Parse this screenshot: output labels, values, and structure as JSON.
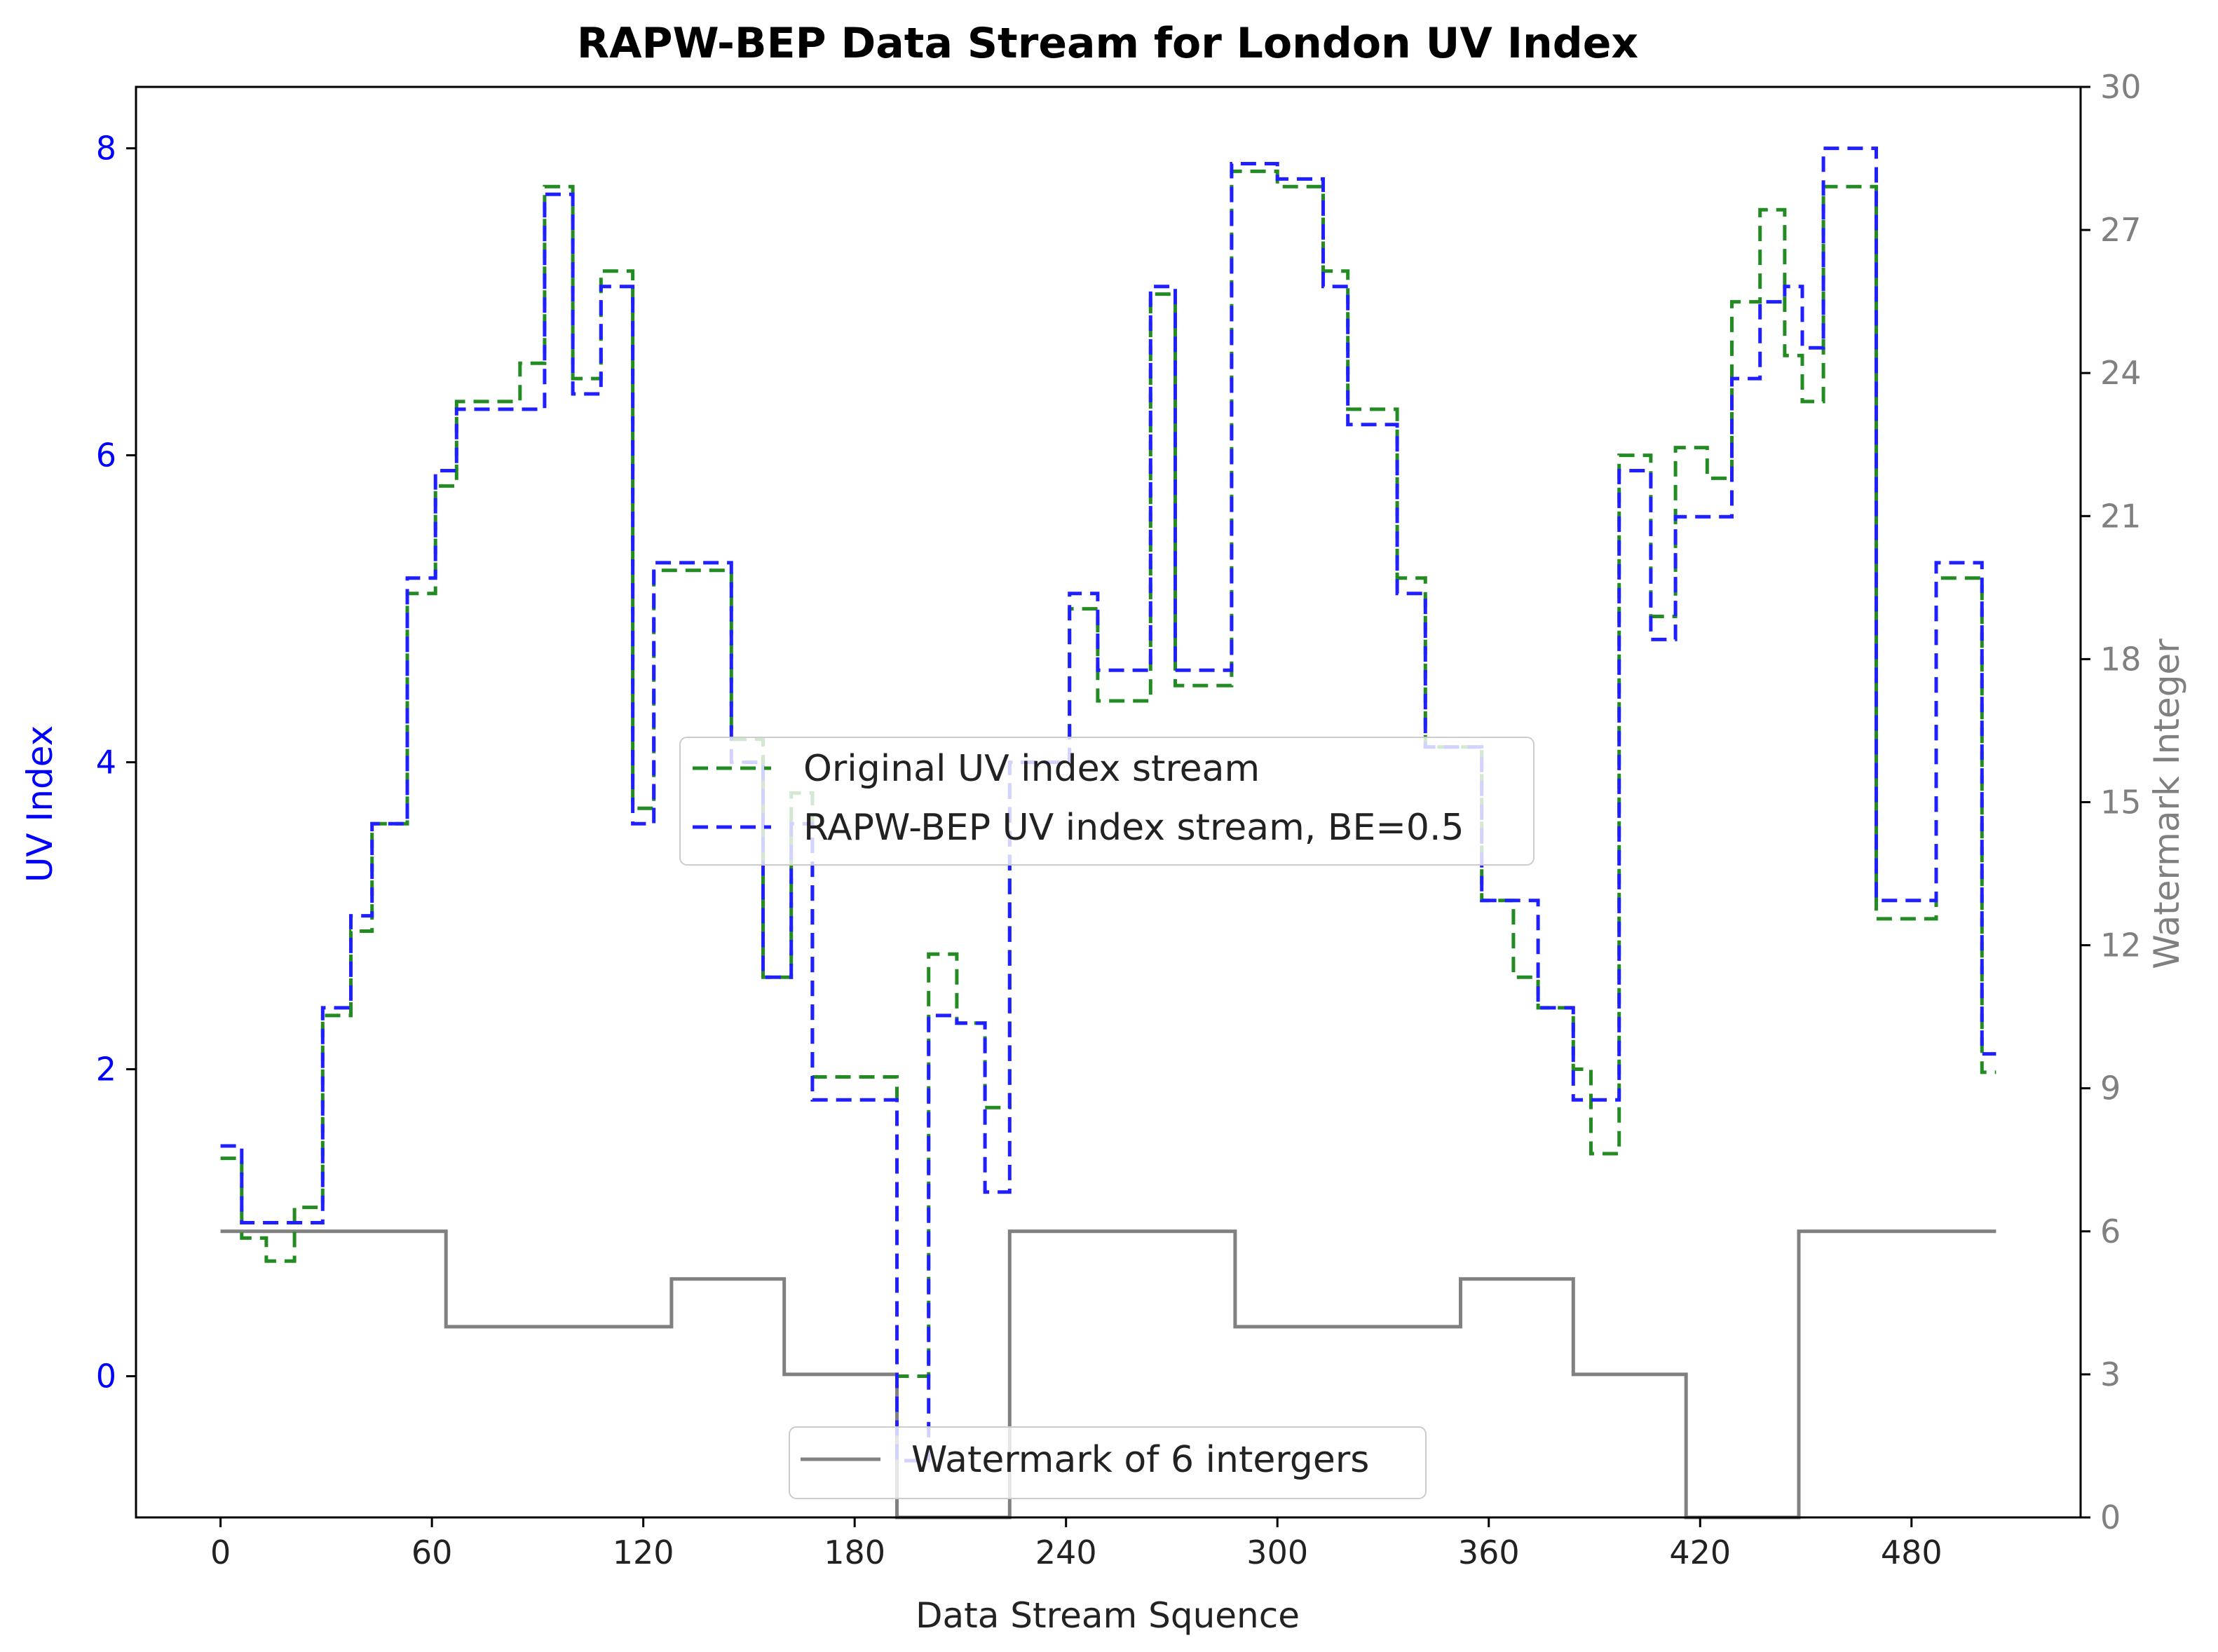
{
  "chart_data": {
    "type": "line",
    "title": "RAPW-BEP Data Stream for London UV Index",
    "xlabel": "Data Stream Squence",
    "ylabel_left": "UV Index",
    "ylabel_right": "Watermark Integer",
    "xlim": [
      -24,
      528
    ],
    "ylim_left": [
      -0.92,
      8.4
    ],
    "ylim_right": [
      0,
      30
    ],
    "x_ticks": [
      0,
      60,
      120,
      180,
      240,
      300,
      360,
      420,
      480
    ],
    "y_ticks_left": [
      0,
      2,
      4,
      6,
      8
    ],
    "y_ticks_right": [
      0,
      3,
      6,
      9,
      12,
      15,
      18,
      21,
      24,
      27,
      30
    ],
    "grid": false,
    "legend_uv": {
      "placement": "center",
      "entries": [
        "Original UV index stream",
        "RAPW-BEP UV index stream, BE=0.5"
      ]
    },
    "legend_wm": {
      "placement": "lower-center",
      "entries": [
        "Watermark of 6 intergers"
      ]
    },
    "colors": {
      "original": "#228b22",
      "rapw": "#1f1fff",
      "watermark": "#808080",
      "left_axis": "#0000ff",
      "right_axis": "#808080"
    },
    "series": [
      {
        "name": "Original UV index stream",
        "axis": "left",
        "style": "dashed-step",
        "steps": [
          [
            0,
            1.42
          ],
          [
            6,
            0.9
          ],
          [
            13,
            0.75
          ],
          [
            21,
            1.1
          ],
          [
            29,
            2.35
          ],
          [
            37,
            2.9
          ],
          [
            43,
            3.6
          ],
          [
            53,
            5.1
          ],
          [
            61,
            5.8
          ],
          [
            67,
            6.35
          ],
          [
            85,
            6.6
          ],
          [
            92,
            7.75
          ],
          [
            100,
            6.5
          ],
          [
            108,
            7.2
          ],
          [
            117,
            3.7
          ],
          [
            123,
            5.25
          ],
          [
            128,
            5.25
          ],
          [
            145,
            4.15
          ],
          [
            154,
            2.6
          ],
          [
            162,
            3.8
          ],
          [
            168,
            1.95
          ],
          [
            192,
            0.0
          ],
          [
            201,
            2.75
          ],
          [
            209,
            2.3
          ],
          [
            217,
            1.75
          ],
          [
            224,
            4.0
          ],
          [
            241,
            5.0
          ],
          [
            249,
            4.4
          ],
          [
            264,
            7.05
          ],
          [
            271,
            4.5
          ],
          [
            287,
            7.85
          ],
          [
            300,
            7.75
          ],
          [
            313,
            7.2
          ],
          [
            320,
            6.3
          ],
          [
            334,
            5.2
          ],
          [
            342,
            4.1
          ],
          [
            358,
            3.1
          ],
          [
            367,
            2.6
          ],
          [
            374,
            2.4
          ],
          [
            384,
            2.0
          ],
          [
            389,
            1.45
          ],
          [
            397,
            6.0
          ],
          [
            406,
            4.95
          ],
          [
            413,
            6.05
          ],
          [
            422,
            5.85
          ],
          [
            429,
            7.0
          ],
          [
            437,
            7.6
          ],
          [
            444,
            6.65
          ],
          [
            449,
            6.35
          ],
          [
            455,
            7.75
          ],
          [
            462,
            7.75
          ],
          [
            470,
            2.98
          ],
          [
            487,
            5.2
          ],
          [
            493,
            5.2
          ],
          [
            500,
            1.98
          ],
          [
            504,
            1.98
          ]
        ]
      },
      {
        "name": "RAPW-BEP UV index stream, BE=0.5",
        "axis": "left",
        "style": "dashed-step",
        "steps": [
          [
            0,
            1.5
          ],
          [
            6,
            1.0
          ],
          [
            13,
            1.0
          ],
          [
            21,
            1.0
          ],
          [
            29,
            2.4
          ],
          [
            37,
            3.0
          ],
          [
            43,
            3.6
          ],
          [
            53,
            5.2
          ],
          [
            61,
            5.9
          ],
          [
            67,
            6.3
          ],
          [
            85,
            6.3
          ],
          [
            92,
            7.7
          ],
          [
            100,
            6.4
          ],
          [
            108,
            7.1
          ],
          [
            117,
            3.6
          ],
          [
            123,
            5.3
          ],
          [
            128,
            5.3
          ],
          [
            145,
            4.0
          ],
          [
            154,
            2.6
          ],
          [
            162,
            3.6
          ],
          [
            168,
            1.8
          ],
          [
            192,
            -0.55
          ],
          [
            201,
            2.35
          ],
          [
            209,
            2.3
          ],
          [
            217,
            1.2
          ],
          [
            224,
            4.0
          ],
          [
            241,
            5.1
          ],
          [
            249,
            4.6
          ],
          [
            264,
            7.1
          ],
          [
            271,
            4.6
          ],
          [
            287,
            7.9
          ],
          [
            300,
            7.8
          ],
          [
            313,
            7.1
          ],
          [
            320,
            6.2
          ],
          [
            334,
            5.1
          ],
          [
            342,
            4.1
          ],
          [
            358,
            3.1
          ],
          [
            367,
            3.1
          ],
          [
            374,
            2.4
          ],
          [
            384,
            1.8
          ],
          [
            389,
            1.8
          ],
          [
            397,
            5.9
          ],
          [
            406,
            4.8
          ],
          [
            413,
            5.6
          ],
          [
            422,
            5.6
          ],
          [
            429,
            6.5
          ],
          [
            437,
            7.0
          ],
          [
            444,
            7.1
          ],
          [
            449,
            6.7
          ],
          [
            455,
            8.0
          ],
          [
            462,
            8.0
          ],
          [
            470,
            3.1
          ],
          [
            487,
            5.3
          ],
          [
            493,
            5.3
          ],
          [
            500,
            2.1
          ],
          [
            504,
            2.1
          ]
        ]
      },
      {
        "name": "Watermark of 6 intergers",
        "axis": "right",
        "style": "solid-step",
        "steps": [
          [
            0,
            6
          ],
          [
            64,
            4
          ],
          [
            128,
            5
          ],
          [
            160,
            3
          ],
          [
            192,
            0
          ],
          [
            224,
            6
          ],
          [
            288,
            4
          ],
          [
            352,
            5
          ],
          [
            384,
            3
          ],
          [
            416,
            0
          ],
          [
            448,
            6
          ],
          [
            504,
            6
          ]
        ]
      }
    ]
  }
}
